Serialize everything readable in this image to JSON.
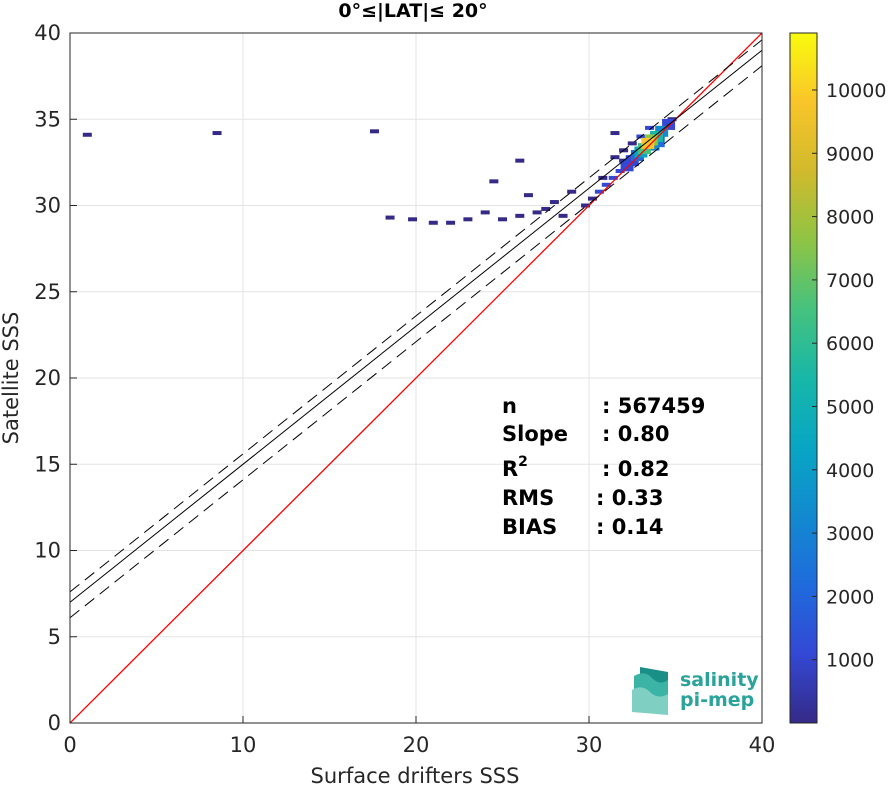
{
  "chart_data": {
    "type": "heatmap",
    "title": "0°≤|LAT|≤ 20°",
    "xlabel": "Surface drifters SSS",
    "ylabel": "Satellite SSS",
    "xlim": [
      0,
      40
    ],
    "ylim": [
      0,
      40
    ],
    "x_ticks": [
      "0",
      "10",
      "20",
      "30",
      "40"
    ],
    "y_ticks": [
      "0",
      "5",
      "10",
      "15",
      "20",
      "25",
      "30",
      "35",
      "40"
    ],
    "grid": true,
    "colorbar": {
      "ticks": [
        "1000",
        "2000",
        "3000",
        "4000",
        "5000",
        "6000",
        "7000",
        "8000",
        "9000",
        "10000"
      ],
      "range": [
        0,
        10900
      ],
      "colormap": "parula"
    },
    "lines": [
      {
        "kind": "identity",
        "color": "#ff0000",
        "intercept": 0,
        "slope": 1
      },
      {
        "kind": "regression",
        "color": "#000000",
        "dash": "solid",
        "intercept": 7.0,
        "slope": 0.8
      },
      {
        "kind": "upper-bound",
        "color": "#000000",
        "dash": "dashed",
        "intercept": 7.6,
        "slope": 0.8
      },
      {
        "kind": "lower-bound",
        "color": "#000000",
        "dash": "dashed",
        "intercept": 6.1,
        "slope": 0.8
      }
    ],
    "density_cells": [
      {
        "x": 34.6,
        "y": 34.7,
        "count": 1200
      },
      {
        "x": 34.2,
        "y": 34.3,
        "count": 2800
      },
      {
        "x": 33.9,
        "y": 34.0,
        "count": 5200
      },
      {
        "x": 33.6,
        "y": 33.8,
        "count": 7800
      },
      {
        "x": 33.4,
        "y": 33.6,
        "count": 9600
      },
      {
        "x": 33.2,
        "y": 33.3,
        "count": 6500
      },
      {
        "x": 33.0,
        "y": 33.1,
        "count": 4200
      },
      {
        "x": 32.8,
        "y": 32.9,
        "count": 2500
      },
      {
        "x": 33.7,
        "y": 33.5,
        "count": 3400
      },
      {
        "x": 34.0,
        "y": 33.7,
        "count": 2100
      },
      {
        "x": 32.5,
        "y": 32.6,
        "count": 1500
      },
      {
        "x": 32.2,
        "y": 32.3,
        "count": 1100
      },
      {
        "x": 31.8,
        "y": 32.0,
        "count": 900
      },
      {
        "x": 31.4,
        "y": 31.6,
        "count": 800
      },
      {
        "x": 31.0,
        "y": 31.2,
        "count": 700
      },
      {
        "x": 30.6,
        "y": 30.8,
        "count": 600
      },
      {
        "x": 30.2,
        "y": 30.4,
        "count": 500
      },
      {
        "x": 29.8,
        "y": 30.0,
        "count": 400
      },
      {
        "x": 33.0,
        "y": 34.0,
        "count": 700
      },
      {
        "x": 32.5,
        "y": 33.6,
        "count": 500
      },
      {
        "x": 32.0,
        "y": 33.2,
        "count": 400
      },
      {
        "x": 32.0,
        "y": 32.6,
        "count": 500
      },
      {
        "x": 31.5,
        "y": 32.8,
        "count": 300
      },
      {
        "x": 33.5,
        "y": 34.5,
        "count": 600
      },
      {
        "x": 34.8,
        "y": 35.0,
        "count": 500
      },
      {
        "x": 30.8,
        "y": 31.6,
        "count": 300
      },
      {
        "x": 29.0,
        "y": 30.8,
        "count": 250
      },
      {
        "x": 28.0,
        "y": 30.2,
        "count": 200
      },
      {
        "x": 27.0,
        "y": 29.6,
        "count": 200
      },
      {
        "x": 26.0,
        "y": 29.4,
        "count": 150
      },
      {
        "x": 25.0,
        "y": 29.2,
        "count": 120
      },
      {
        "x": 24.0,
        "y": 29.6,
        "count": 100
      },
      {
        "x": 23.0,
        "y": 29.2,
        "count": 90
      },
      {
        "x": 22.0,
        "y": 29.0,
        "count": 80
      },
      {
        "x": 28.5,
        "y": 29.4,
        "count": 200
      },
      {
        "x": 27.5,
        "y": 29.8,
        "count": 180
      },
      {
        "x": 26.5,
        "y": 30.6,
        "count": 120
      },
      {
        "x": 24.5,
        "y": 31.4,
        "count": 80
      },
      {
        "x": 31.5,
        "y": 34.2,
        "count": 60
      },
      {
        "x": 26.0,
        "y": 32.6,
        "count": 40
      },
      {
        "x": 1.0,
        "y": 34.1,
        "count": 20
      },
      {
        "x": 8.5,
        "y": 34.2,
        "count": 20
      },
      {
        "x": 17.6,
        "y": 34.3,
        "count": 20
      },
      {
        "x": 18.5,
        "y": 29.3,
        "count": 30
      },
      {
        "x": 19.8,
        "y": 29.2,
        "count": 30
      },
      {
        "x": 21.0,
        "y": 29.0,
        "count": 40
      }
    ]
  },
  "stats": {
    "n_label": "n",
    "n_value": ": 567459",
    "slope_label": "Slope",
    "slope_value": ": 0.80",
    "r2_label_base": "R",
    "r2_label_sup": "2",
    "r2_value": ": 0.82",
    "rms_label": "RMS",
    "rms_value": ": 0.33",
    "bias_label": "BIAS",
    "bias_value": ": 0.14"
  },
  "logo": {
    "line1": "salinity",
    "line2": "pi-mep",
    "color": "#2aa39a"
  }
}
